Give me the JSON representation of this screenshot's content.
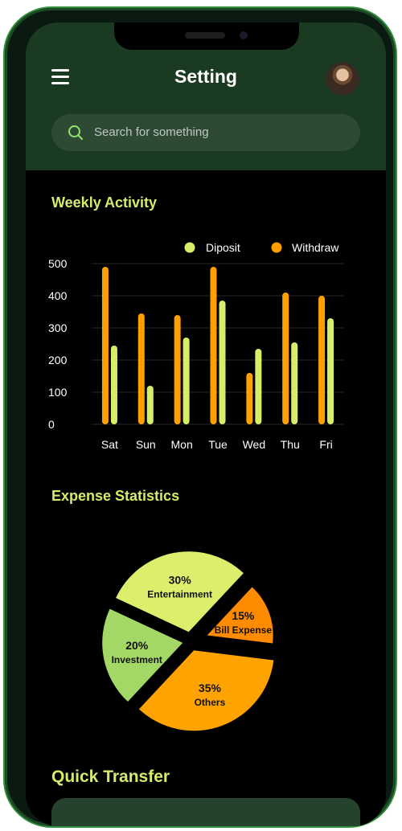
{
  "header": {
    "title": "Setting",
    "search_placeholder": "Search for something"
  },
  "weekly_activity": {
    "title": "Weekly Activity"
  },
  "expense_statistics": {
    "title": "Expense Statistics"
  },
  "quick_transfer": {
    "title": "Quick Transfer"
  },
  "colors": {
    "header_bg": "#1b3a22",
    "accent_yellow": "#d6ea6b",
    "withdraw": "#ffa000",
    "deposit": "#d7ee6a",
    "investment": "#a4d866",
    "bill": "#ff8c00",
    "others": "#ffa300"
  },
  "chart_data": [
    {
      "type": "bar",
      "title": "Weekly Activity",
      "categories": [
        "Sat",
        "Sun",
        "Mon",
        "Tue",
        "Wed",
        "Thu",
        "Fri"
      ],
      "series": [
        {
          "name": "Withdraw",
          "color": "#ffa000",
          "values": [
            490,
            345,
            340,
            490,
            160,
            410,
            400
          ]
        },
        {
          "name": "Diposit",
          "color": "#d7ee6a",
          "values": [
            245,
            120,
            270,
            385,
            235,
            255,
            330
          ]
        }
      ],
      "yticks": [
        "500",
        "400",
        "300",
        "200",
        "100",
        "0"
      ],
      "ylim": [
        0,
        500
      ],
      "legend": "top-right",
      "grid": true
    },
    {
      "type": "pie",
      "title": "Expense Statistics",
      "slices": [
        {
          "label": "Entertainment",
          "percent_label": "30%",
          "value": 30,
          "color": "#dcee6c"
        },
        {
          "label": "Bill Expense",
          "percent_label": "15%",
          "value": 15,
          "color": "#ff8c00"
        },
        {
          "label": "Others",
          "percent_label": "35%",
          "value": 35,
          "color": "#ffa300"
        },
        {
          "label": "Investment",
          "percent_label": "20%",
          "value": 20,
          "color": "#a4d866"
        }
      ]
    }
  ]
}
